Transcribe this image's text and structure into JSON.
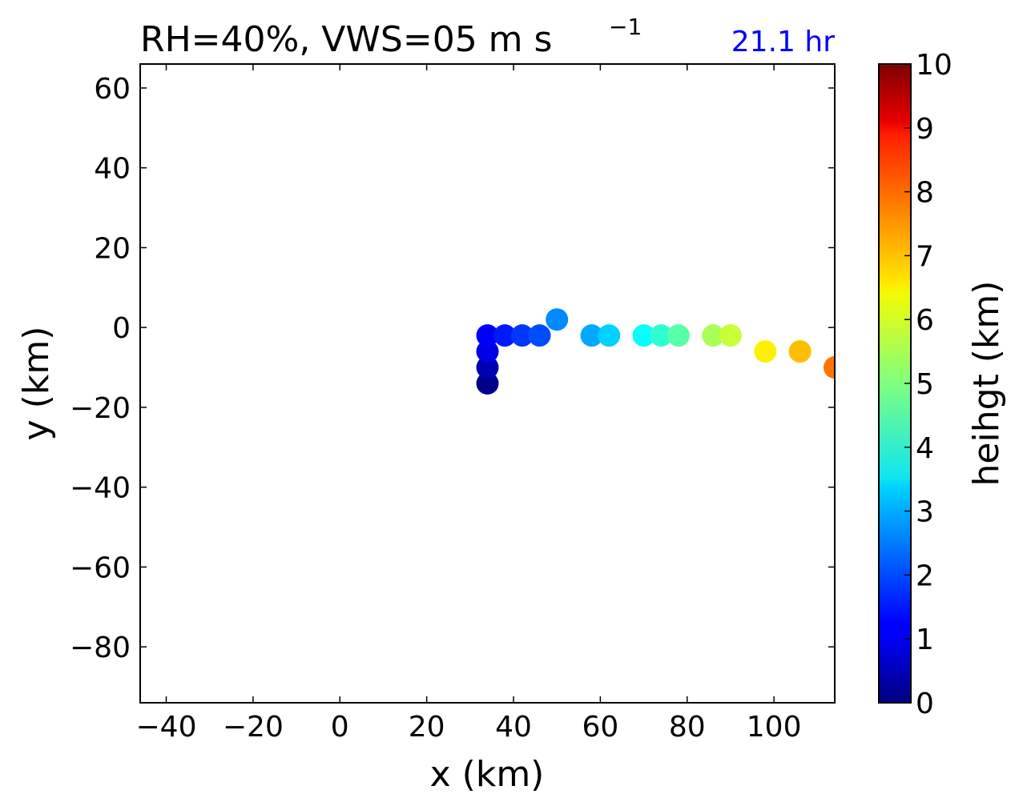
{
  "chart_data": {
    "type": "scatter",
    "title": "RH=40%, VWS=05 m s",
    "title_superscript": "−1",
    "time_label": "21.1 hr",
    "time_label_color": "#0000ff",
    "xlabel": "x (km)",
    "ylabel": "y (km)",
    "xlim": [
      -46,
      114
    ],
    "ylim": [
      -94,
      66
    ],
    "xticks": [
      -40,
      -20,
      0,
      20,
      40,
      60,
      80,
      100
    ],
    "xtick_labels": [
      "−40",
      "−20",
      "0",
      "20",
      "40",
      "60",
      "80",
      "100"
    ],
    "yticks": [
      60,
      40,
      20,
      0,
      -20,
      -40,
      -60,
      -80
    ],
    "ytick_labels": [
      "60",
      "40",
      "20",
      "0",
      "−20",
      "−40",
      "−60",
      "−80"
    ],
    "colorbar": {
      "label": "heihgt (km)",
      "colormap": "jet",
      "range": [
        0,
        10
      ],
      "ticks": [
        0,
        1,
        2,
        3,
        4,
        5,
        6,
        7,
        8,
        9,
        10
      ],
      "tick_labels": [
        "0",
        "1",
        "2",
        "3",
        "4",
        "5",
        "6",
        "7",
        "8",
        "9",
        "10"
      ]
    },
    "points": [
      {
        "x": 34,
        "y": -14,
        "height": 0.1
      },
      {
        "x": 34,
        "y": -10,
        "height": 0.5
      },
      {
        "x": 34,
        "y": -6,
        "height": 1.0
      },
      {
        "x": 34,
        "y": -2,
        "height": 1.2
      },
      {
        "x": 38,
        "y": -2,
        "height": 1.5
      },
      {
        "x": 42,
        "y": -2,
        "height": 1.8
      },
      {
        "x": 46,
        "y": -2,
        "height": 2.0
      },
      {
        "x": 50,
        "y": 2,
        "height": 2.6
      },
      {
        "x": 58,
        "y": -2,
        "height": 2.9
      },
      {
        "x": 62,
        "y": -2,
        "height": 3.3
      },
      {
        "x": 70,
        "y": -2,
        "height": 3.8
      },
      {
        "x": 74,
        "y": -2,
        "height": 4.2
      },
      {
        "x": 78,
        "y": -2,
        "height": 4.6
      },
      {
        "x": 86,
        "y": -2,
        "height": 5.4
      },
      {
        "x": 90,
        "y": -2,
        "height": 5.7
      },
      {
        "x": 98,
        "y": -6,
        "height": 6.4
      },
      {
        "x": 106,
        "y": -6,
        "height": 6.9
      },
      {
        "x": 114,
        "y": -10,
        "height": 7.6
      }
    ]
  }
}
